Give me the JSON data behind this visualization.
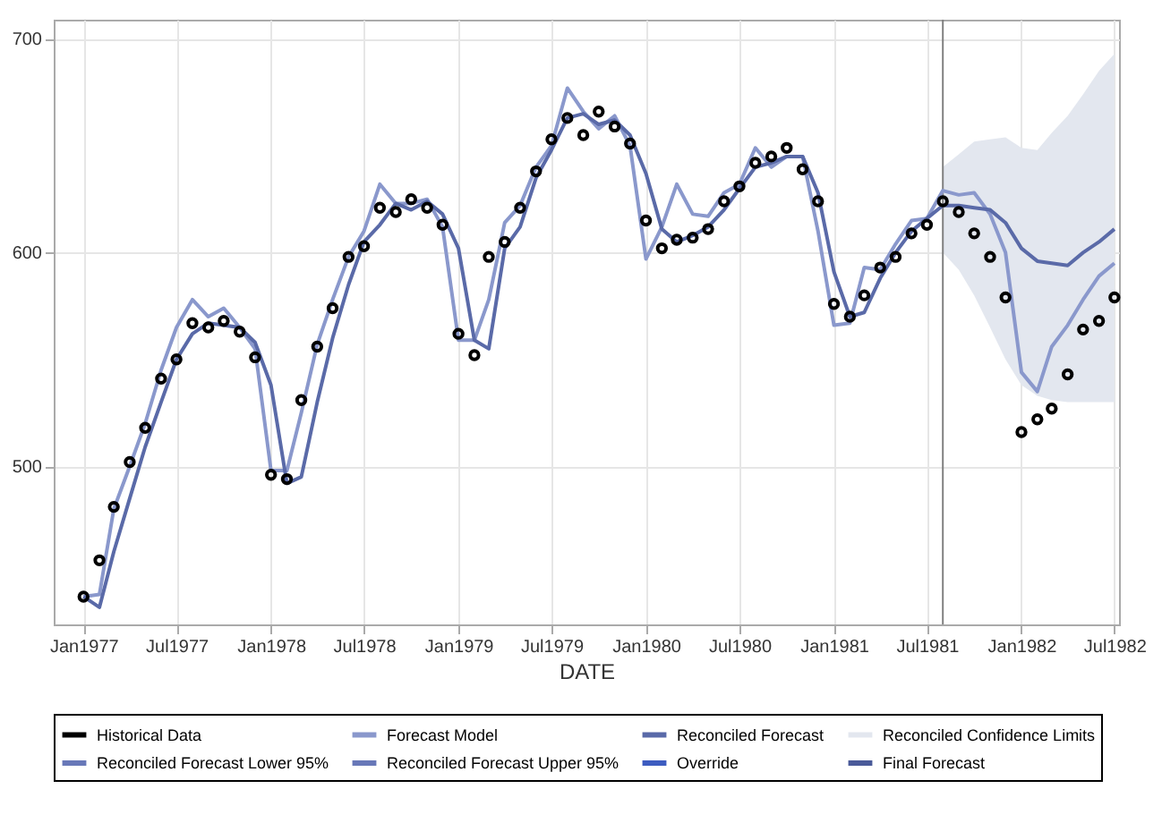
{
  "chart_data": {
    "type": "line",
    "xlabel": "DATE",
    "x": [
      "1977-01",
      "1977-02",
      "1977-03",
      "1977-04",
      "1977-05",
      "1977-06",
      "1977-07",
      "1977-08",
      "1977-09",
      "1977-10",
      "1977-11",
      "1977-12",
      "1978-01",
      "1978-02",
      "1978-03",
      "1978-04",
      "1978-05",
      "1978-06",
      "1978-07",
      "1978-08",
      "1978-09",
      "1978-10",
      "1978-11",
      "1978-12",
      "1979-01",
      "1979-02",
      "1979-03",
      "1979-04",
      "1979-05",
      "1979-06",
      "1979-07",
      "1979-08",
      "1979-09",
      "1979-10",
      "1979-11",
      "1979-12",
      "1980-01",
      "1980-02",
      "1980-03",
      "1980-04",
      "1980-05",
      "1980-06",
      "1980-07",
      "1980-08",
      "1980-09",
      "1980-10",
      "1980-11",
      "1980-12",
      "1981-01",
      "1981-02",
      "1981-03",
      "1981-04",
      "1981-05",
      "1981-06",
      "1981-07",
      "1981-08",
      "1981-09",
      "1981-10",
      "1981-11",
      "1981-12",
      "1982-01",
      "1982-02",
      "1982-03",
      "1982-04",
      "1982-05",
      "1982-06",
      "1982-07"
    ],
    "series": [
      {
        "name": "Historical Data",
        "type": "scatter",
        "color": "#000000",
        "marker": "circle",
        "values": [
          439,
          456,
          481,
          502,
          518,
          541,
          550,
          567,
          565,
          568,
          563,
          551,
          496,
          494,
          531,
          556,
          574,
          598,
          603,
          621,
          619,
          625,
          621,
          613,
          562,
          552,
          598,
          605,
          621,
          638,
          653,
          663,
          655,
          666,
          659,
          651,
          615,
          602,
          606,
          607,
          611,
          624,
          631,
          642,
          645,
          649,
          639,
          624,
          576,
          570,
          580,
          593,
          598,
          609,
          613,
          624,
          619,
          609,
          598,
          579,
          516,
          522,
          527,
          543,
          564,
          568,
          579
        ]
      },
      {
        "name": "Forecast Model",
        "color": "#8a98cc",
        "values": [
          439,
          440,
          480,
          500,
          520,
          545,
          565,
          578,
          570,
          574,
          565,
          555,
          498,
          498,
          525,
          557,
          578,
          598,
          610,
          632,
          623,
          623,
          625,
          612,
          559,
          559,
          578,
          614,
          622,
          640,
          650,
          677,
          666,
          658,
          664,
          650,
          597,
          612,
          632,
          618,
          617,
          628,
          632,
          649,
          640,
          645,
          645,
          610,
          566,
          567,
          593,
          592,
          604,
          615,
          616,
          629,
          627,
          628,
          618,
          600,
          544,
          535,
          556,
          566,
          578,
          589,
          595
        ]
      },
      {
        "name": "Reconciled Forecast",
        "color": "#5a6aa8",
        "values": [
          439,
          434,
          460,
          485,
          509,
          530,
          550,
          562,
          567,
          566,
          565,
          558,
          538,
          492,
          495,
          530,
          560,
          585,
          605,
          613,
          623,
          620,
          624,
          618,
          602,
          559,
          555,
          602,
          612,
          635,
          648,
          663,
          665,
          660,
          662,
          655,
          637,
          611,
          605,
          608,
          612,
          620,
          630,
          640,
          642,
          645,
          645,
          628,
          591,
          570,
          572,
          588,
          600,
          610,
          616,
          622,
          622,
          621,
          620,
          614,
          602,
          596,
          595,
          594,
          600,
          605,
          611
        ],
        "lower": [
          null,
          null,
          null,
          null,
          null,
          null,
          null,
          null,
          null,
          null,
          null,
          null,
          null,
          null,
          null,
          null,
          null,
          null,
          null,
          null,
          null,
          null,
          null,
          null,
          null,
          null,
          null,
          null,
          null,
          null,
          null,
          null,
          null,
          null,
          null,
          null,
          null,
          null,
          null,
          null,
          null,
          null,
          null,
          null,
          null,
          null,
          null,
          null,
          null,
          null,
          null,
          null,
          null,
          null,
          null,
          600,
          592,
          580,
          565,
          550,
          538,
          533,
          531,
          530,
          530,
          530,
          530
        ],
        "upper": [
          null,
          null,
          null,
          null,
          null,
          null,
          null,
          null,
          null,
          null,
          null,
          null,
          null,
          null,
          null,
          null,
          null,
          null,
          null,
          null,
          null,
          null,
          null,
          null,
          null,
          null,
          null,
          null,
          null,
          null,
          null,
          null,
          null,
          null,
          null,
          null,
          null,
          null,
          null,
          null,
          null,
          null,
          null,
          null,
          null,
          null,
          null,
          null,
          null,
          null,
          null,
          null,
          null,
          null,
          null,
          640,
          646,
          652,
          653,
          654,
          649,
          648,
          656,
          664,
          674,
          685,
          693
        ]
      },
      {
        "name": "Reconciled Confidence Limits",
        "type": "area",
        "color": "#e3e7ef",
        "values": [
          null,
          null,
          null,
          null,
          null,
          null,
          null,
          null,
          null,
          null,
          null,
          null,
          null,
          null,
          null,
          null,
          null,
          null,
          null,
          null,
          null,
          null,
          null,
          null,
          null,
          null,
          null,
          null,
          null,
          null,
          null,
          null,
          null,
          null,
          null,
          null,
          null,
          null,
          null,
          null,
          null,
          null,
          null,
          null,
          null,
          null,
          null,
          null,
          null,
          null,
          null,
          null,
          null,
          null,
          null,
          null,
          null,
          null,
          null,
          null,
          null,
          null,
          null,
          null,
          null,
          null,
          null
        ]
      },
      {
        "name": "Reconciled Forecast Lower 95%",
        "color": "#6878b8",
        "values": [
          null,
          null,
          null,
          null,
          null,
          null,
          null,
          null,
          null,
          null,
          null,
          null,
          null,
          null,
          null,
          null,
          null,
          null,
          null,
          null,
          null,
          null,
          null,
          null,
          null,
          null,
          null,
          null,
          null,
          null,
          null,
          null,
          null,
          null,
          null,
          null,
          null,
          null,
          null,
          null,
          null,
          null,
          null,
          null,
          null,
          null,
          null,
          null,
          null,
          null,
          null,
          null,
          null,
          null,
          null,
          null,
          null,
          null,
          null,
          null,
          null,
          null,
          null,
          null,
          null,
          null,
          null
        ]
      },
      {
        "name": "Reconciled Forecast Upper 95%",
        "color": "#6878b8",
        "values": [
          null,
          null,
          null,
          null,
          null,
          null,
          null,
          null,
          null,
          null,
          null,
          null,
          null,
          null,
          null,
          null,
          null,
          null,
          null,
          null,
          null,
          null,
          null,
          null,
          null,
          null,
          null,
          null,
          null,
          null,
          null,
          null,
          null,
          null,
          null,
          null,
          null,
          null,
          null,
          null,
          null,
          null,
          null,
          null,
          null,
          null,
          null,
          null,
          null,
          null,
          null,
          null,
          null,
          null,
          null,
          null,
          null,
          null,
          null,
          null,
          null,
          null,
          null,
          null,
          null,
          null,
          null
        ]
      },
      {
        "name": "Override",
        "type": "scatter",
        "color": "#3d5cc0",
        "marker": "circle",
        "values": [
          null,
          null,
          null,
          null,
          null,
          null,
          null,
          null,
          null,
          null,
          null,
          null,
          null,
          null,
          null,
          null,
          null,
          null,
          null,
          null,
          null,
          null,
          null,
          null,
          null,
          null,
          null,
          null,
          null,
          null,
          null,
          null,
          null,
          null,
          null,
          null,
          null,
          null,
          null,
          null,
          null,
          null,
          null,
          null,
          null,
          null,
          null,
          null,
          null,
          null,
          null,
          null,
          null,
          null,
          null,
          null,
          null,
          null,
          null,
          null,
          null,
          null,
          null,
          null,
          null,
          null,
          null
        ]
      },
      {
        "name": "Final Forecast",
        "color": "#4a5a99",
        "values": [
          null,
          null,
          null,
          null,
          null,
          null,
          null,
          null,
          null,
          null,
          null,
          null,
          null,
          null,
          null,
          null,
          null,
          null,
          null,
          null,
          null,
          null,
          null,
          null,
          null,
          null,
          null,
          null,
          null,
          null,
          null,
          null,
          null,
          null,
          null,
          null,
          null,
          null,
          null,
          null,
          null,
          null,
          null,
          null,
          null,
          null,
          null,
          null,
          null,
          null,
          null,
          null,
          null,
          null,
          null,
          null,
          null,
          null,
          null,
          null,
          null,
          null,
          null,
          null,
          null,
          null,
          null
        ]
      }
    ],
    "xlim": [
      "1976-11-04",
      "1982-07-10"
    ],
    "xticks": [
      {
        "value": "1977-01",
        "label": "Jan1977"
      },
      {
        "value": "1977-07",
        "label": "Jul1977"
      },
      {
        "value": "1978-01",
        "label": "Jan1978"
      },
      {
        "value": "1978-07",
        "label": "Jul1978"
      },
      {
        "value": "1979-01",
        "label": "Jan1979"
      },
      {
        "value": "1979-07",
        "label": "Jul1979"
      },
      {
        "value": "1980-01",
        "label": "Jan1980"
      },
      {
        "value": "1980-07",
        "label": "Jul1980"
      },
      {
        "value": "1981-01",
        "label": "Jan1981"
      },
      {
        "value": "1981-07",
        "label": "Jul1981"
      },
      {
        "value": "1982-01",
        "label": "Jan1982"
      },
      {
        "value": "1982-07",
        "label": "Jul1982"
      }
    ],
    "ylim": [
      426,
      709
    ],
    "yticks": [
      500,
      600,
      700
    ],
    "ref_lines": [
      {
        "axis": "x",
        "value": "1981-08",
        "color": "#808080"
      }
    ],
    "grid": true,
    "legend": "bottom",
    "line_style": "solid"
  }
}
